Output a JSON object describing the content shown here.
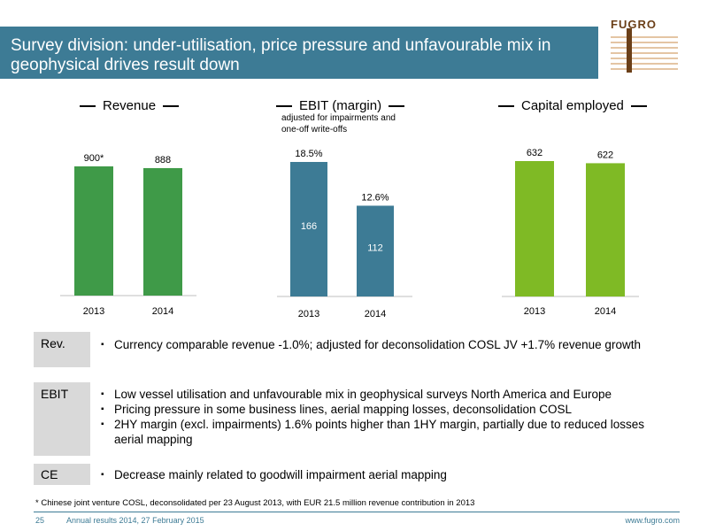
{
  "slide": {
    "title": "Survey division: under-utilisation, price pressure and unfavourable mix in geophysical drives result down",
    "logo_text": "FUGRO",
    "footnote": "* Chinese joint venture COSL, deconsolidated per 23 August 2013, with EUR 21.5 million revenue contribution in 2013",
    "page_number": "25",
    "footer_left": "Annual results 2014, 27 February 2015",
    "footer_right": "www.fugro.com"
  },
  "chart_data": [
    {
      "type": "bar",
      "title": "Revenue",
      "categories": [
        "2013",
        "2014"
      ],
      "values": [
        900,
        888
      ],
      "data_labels": [
        "900*",
        "888"
      ],
      "color": "#3f9a48"
    },
    {
      "type": "bar",
      "title": "EBIT (margin)",
      "subtitle": "adjusted for impairments and one-off write-offs",
      "categories": [
        "2013",
        "2014"
      ],
      "values": [
        166,
        112
      ],
      "data_labels": [
        "166",
        "112"
      ],
      "margin_labels": [
        "18.5%",
        "12.6%"
      ],
      "color": "#3d7b95"
    },
    {
      "type": "bar",
      "title": "Capital employed",
      "categories": [
        "2013",
        "2014"
      ],
      "values": [
        632,
        622
      ],
      "data_labels": [
        "632",
        "622"
      ],
      "color": "#7fba25"
    }
  ],
  "sections": [
    {
      "label": "Rev.",
      "bullets": [
        "Currency comparable revenue -1.0%; adjusted for deconsolidation COSL JV +1.7% revenue growth"
      ]
    },
    {
      "label": "EBIT",
      "bullets": [
        "Low vessel utilisation and unfavourable mix in geophysical surveys North America and Europe",
        "Pricing pressure in some business lines, aerial mapping losses, deconsolidation COSL",
        "2HY margin (excl. impairments) 1.6% points higher than 1HY margin, partially due to reduced losses aerial mapping"
      ]
    },
    {
      "label": "CE",
      "bullets": [
        "Decrease mainly related to goodwill impairment aerial mapping"
      ]
    }
  ]
}
